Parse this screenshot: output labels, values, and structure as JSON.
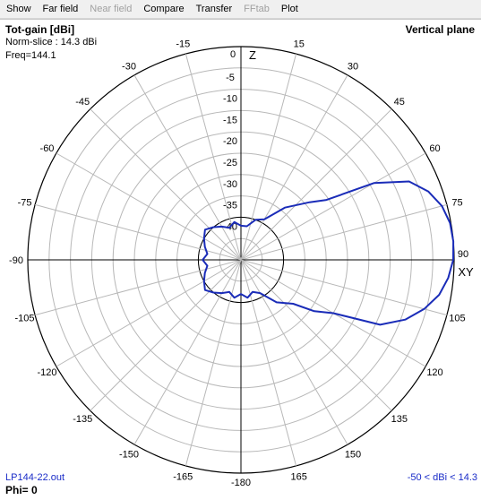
{
  "menu": {
    "items": [
      {
        "label": "Show",
        "enabled": true
      },
      {
        "label": "Far field",
        "enabled": true
      },
      {
        "label": "Near field",
        "enabled": false
      },
      {
        "label": "Compare",
        "enabled": true
      },
      {
        "label": "Transfer",
        "enabled": true
      },
      {
        "label": "FFtab",
        "enabled": false
      },
      {
        "label": "Plot",
        "enabled": true
      }
    ]
  },
  "plot": {
    "title": "Tot-gain [dBi]",
    "norm_slice": "Norm-slice : 14.3 dBi",
    "freq": "Freq=144.1",
    "plane": "Vertical plane",
    "file": "LP144-22.out",
    "phi": "Phi= 0",
    "range": "-50 < dBi < 14.3",
    "z_label": "Z",
    "xy_label": "XY",
    "trace_color": "#1a2cb8"
  },
  "chart_data": {
    "type": "polar",
    "angle_labels": [
      "0",
      "15",
      "30",
      "45",
      "60",
      "75",
      "90",
      "105",
      "120",
      "135",
      "150",
      "165",
      "-180",
      "-165",
      "-150",
      "-135",
      "-120",
      "-105",
      "-90",
      "-75",
      "-60",
      "-45",
      "-30",
      "-15"
    ],
    "radial_tick_labels": [
      "0",
      "-5",
      "-10",
      "-15",
      "-20",
      "-25",
      "-30",
      "-35",
      "-40"
    ],
    "radial_range_dbi": [
      -50,
      14.3
    ],
    "peak_gain_dbi": 14.3,
    "grid": true,
    "series": [
      {
        "theta_deg": [
          0,
          10,
          20,
          30,
          40,
          50,
          55,
          60,
          65,
          70,
          75,
          80,
          85,
          90,
          95,
          100,
          105,
          110,
          115,
          120,
          125,
          130,
          140,
          150,
          160,
          170,
          180,
          190,
          200,
          210,
          220,
          230,
          240,
          250,
          260,
          270,
          280,
          290,
          300,
          310,
          320,
          330,
          340,
          350,
          360
        ],
        "gain_db": [
          -42,
          -42,
          -40,
          -39,
          -34,
          -29,
          -25.5,
          -14,
          -6.5,
          -3.2,
          -1.2,
          -0.2,
          0,
          -0.2,
          -1.2,
          -2.8,
          -5.5,
          -9,
          -14,
          -25,
          -29,
          -34,
          -37,
          -41,
          -42,
          -41,
          -42,
          -41,
          -42,
          -41,
          -40,
          -39,
          -40,
          -41,
          -42,
          -41,
          -42,
          -41,
          -40,
          -39,
          -40,
          -41,
          -42,
          -41,
          -42
        ]
      }
    ]
  }
}
